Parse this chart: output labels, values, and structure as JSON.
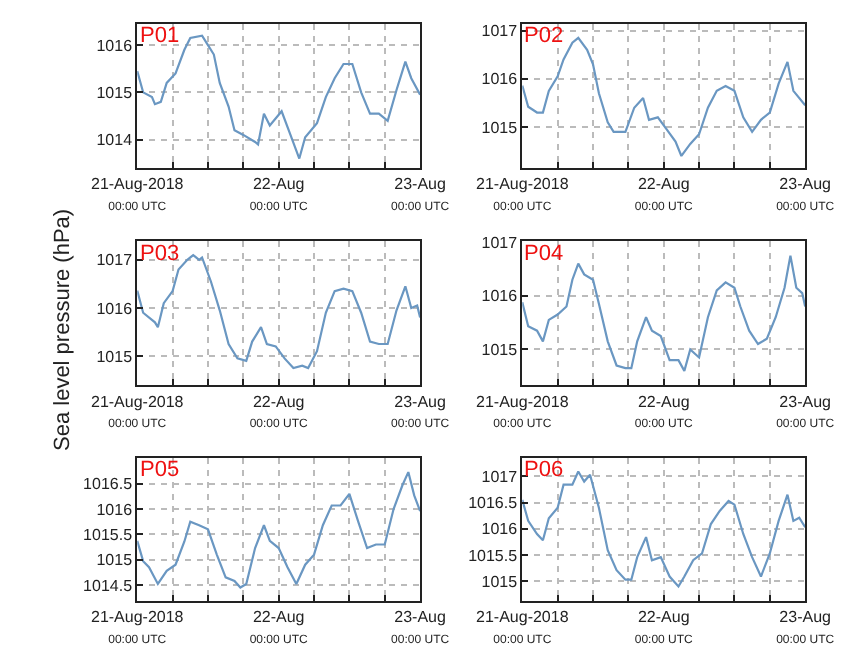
{
  "chart_data": [
    {
      "type": "line",
      "annotations": [
        "P01"
      ],
      "grid": true,
      "ylim": [
        1013.4,
        1016.45
      ],
      "yticks": [
        1014,
        1015,
        1016
      ],
      "xlim": [
        "2018-08-21T00:00",
        "2018-08-23T00:00"
      ],
      "xticks": [
        {
          "value": "2018-08-21T00:00",
          "label": "21-Aug-2018\n00:00 UTC"
        },
        {
          "value": "2018-08-21T06:00",
          "label": null
        },
        {
          "value": "2018-08-21T12:00",
          "label": null
        },
        {
          "value": "2018-08-21T18:00",
          "label": null
        },
        {
          "value": "2018-08-22T00:00",
          "label": "22-Aug\n00:00 UTC"
        },
        {
          "value": "2018-08-22T06:00",
          "label": null
        },
        {
          "value": "2018-08-22T12:00",
          "label": null
        },
        {
          "value": "2018-08-22T18:00",
          "label": null
        },
        {
          "value": "2018-08-23T00:00",
          "label": "23-Aug\n00:00 UTC"
        }
      ],
      "series": [
        {
          "color": "#6a97c2",
          "x": [
            "2018-08-21T00:00",
            "2018-08-21T01:00",
            "2018-08-21T02:30",
            "2018-08-21T03:00",
            "2018-08-21T04:00",
            "2018-08-21T05:00",
            "2018-08-21T06:30",
            "2018-08-21T08:00",
            "2018-08-21T09:00",
            "2018-08-21T11:00",
            "2018-08-21T12:00",
            "2018-08-21T13:00",
            "2018-08-21T14:00",
            "2018-08-21T15:30",
            "2018-08-21T16:30",
            "2018-08-21T18:00",
            "2018-08-21T20:00",
            "2018-08-21T20:30",
            "2018-08-21T21:30",
            "2018-08-21T22:30",
            "2018-08-22T00:30",
            "2018-08-22T02:00",
            "2018-08-22T03:30",
            "2018-08-22T04:30",
            "2018-08-22T06:30",
            "2018-08-22T08:00",
            "2018-08-22T09:30",
            "2018-08-22T11:00",
            "2018-08-22T12:30",
            "2018-08-22T14:00",
            "2018-08-22T15:30",
            "2018-08-22T17:00",
            "2018-08-22T18:30",
            "2018-08-22T20:00",
            "2018-08-22T21:30",
            "2018-08-22T22:30",
            "2018-08-23T00:00"
          ],
          "values": [
            1015.45,
            1015.0,
            1014.9,
            1014.75,
            1014.8,
            1015.2,
            1015.4,
            1015.9,
            1016.15,
            1016.2,
            1016.0,
            1015.8,
            1015.2,
            1014.7,
            1014.2,
            1014.1,
            1013.95,
            1013.9,
            1014.55,
            1014.3,
            1014.6,
            1014.1,
            1013.6,
            1014.05,
            1014.35,
            1014.9,
            1015.3,
            1015.6,
            1015.6,
            1015.0,
            1014.55,
            1014.55,
            1014.4,
            1015.05,
            1015.65,
            1015.3,
            1014.95
          ]
        }
      ]
    },
    {
      "type": "line",
      "annotations": [
        "P02"
      ],
      "grid": true,
      "ylim": [
        1014.15,
        1017.14
      ],
      "yticks": [
        1015,
        1016,
        1017
      ],
      "xlim": [
        "2018-08-21T00:00",
        "2018-08-23T00:00"
      ],
      "xticks": [
        {
          "value": "2018-08-21T00:00",
          "label": "21-Aug-2018\n00:00 UTC"
        },
        {
          "value": "2018-08-21T06:00",
          "label": null
        },
        {
          "value": "2018-08-21T12:00",
          "label": null
        },
        {
          "value": "2018-08-21T18:00",
          "label": null
        },
        {
          "value": "2018-08-22T00:00",
          "label": "22-Aug\n00:00 UTC"
        },
        {
          "value": "2018-08-22T06:00",
          "label": null
        },
        {
          "value": "2018-08-22T12:00",
          "label": null
        },
        {
          "value": "2018-08-22T18:00",
          "label": null
        },
        {
          "value": "2018-08-23T00:00",
          "label": "23-Aug\n00:00 UTC"
        }
      ],
      "series": [
        {
          "color": "#6a97c2",
          "x": [
            "2018-08-21T00:00",
            "2018-08-21T01:00",
            "2018-08-21T02:30",
            "2018-08-21T03:30",
            "2018-08-21T04:30",
            "2018-08-21T06:00",
            "2018-08-21T07:00",
            "2018-08-21T08:30",
            "2018-08-21T09:30",
            "2018-08-21T11:00",
            "2018-08-21T12:00",
            "2018-08-21T13:00",
            "2018-08-21T14:30",
            "2018-08-21T15:30",
            "2018-08-21T17:30",
            "2018-08-21T19:00",
            "2018-08-21T20:30",
            "2018-08-21T21:30",
            "2018-08-21T23:00",
            "2018-08-22T00:30",
            "2018-08-22T02:00",
            "2018-08-22T03:00",
            "2018-08-22T04:30",
            "2018-08-22T06:00",
            "2018-08-22T07:30",
            "2018-08-22T09:00",
            "2018-08-22T10:30",
            "2018-08-22T12:00",
            "2018-08-22T13:30",
            "2018-08-22T15:00",
            "2018-08-22T16:30",
            "2018-08-22T18:00",
            "2018-08-22T19:30",
            "2018-08-22T21:00",
            "2018-08-22T22:00",
            "2018-08-23T00:00"
          ],
          "values": [
            1015.86,
            1015.42,
            1015.3,
            1015.3,
            1015.75,
            1016.05,
            1016.4,
            1016.75,
            1016.85,
            1016.6,
            1016.3,
            1015.7,
            1015.1,
            1014.9,
            1014.9,
            1015.4,
            1015.6,
            1015.15,
            1015.2,
            1014.95,
            1014.7,
            1014.4,
            1014.65,
            1014.85,
            1015.4,
            1015.75,
            1015.85,
            1015.75,
            1015.2,
            1014.9,
            1015.15,
            1015.3,
            1015.9,
            1016.35,
            1015.75,
            1015.45
          ]
        }
      ]
    },
    {
      "type": "line",
      "annotations": [
        "P03"
      ],
      "ylabel": "Sea level pressure (hPa)",
      "grid": true,
      "ylim": [
        1014.39,
        1017.39
      ],
      "yticks": [
        1015,
        1016,
        1017
      ],
      "xlim": [
        "2018-08-21T00:00",
        "2018-08-23T00:00"
      ],
      "xticks": [
        {
          "value": "2018-08-21T00:00",
          "label": "21-Aug-2018\n00:00 UTC"
        },
        {
          "value": "2018-08-21T06:00",
          "label": null
        },
        {
          "value": "2018-08-21T12:00",
          "label": null
        },
        {
          "value": "2018-08-21T18:00",
          "label": null
        },
        {
          "value": "2018-08-22T00:00",
          "label": "22-Aug\n00:00 UTC"
        },
        {
          "value": "2018-08-22T06:00",
          "label": null
        },
        {
          "value": "2018-08-22T12:00",
          "label": null
        },
        {
          "value": "2018-08-22T18:00",
          "label": null
        },
        {
          "value": "2018-08-23T00:00",
          "label": "23-Aug\n00:00 UTC"
        }
      ],
      "series": [
        {
          "color": "#6a97c2",
          "x": [
            "2018-08-21T00:00",
            "2018-08-21T01:00",
            "2018-08-21T03:00",
            "2018-08-21T03:30",
            "2018-08-21T04:30",
            "2018-08-21T06:00",
            "2018-08-21T07:00",
            "2018-08-21T08:30",
            "2018-08-21T09:30",
            "2018-08-21T10:30",
            "2018-08-21T11:00",
            "2018-08-21T12:30",
            "2018-08-21T14:00",
            "2018-08-21T15:30",
            "2018-08-21T17:00",
            "2018-08-21T18:30",
            "2018-08-21T19:30",
            "2018-08-21T21:00",
            "2018-08-21T22:00",
            "2018-08-21T23:30",
            "2018-08-22T01:00",
            "2018-08-22T02:30",
            "2018-08-22T04:00",
            "2018-08-22T05:00",
            "2018-08-22T06:30",
            "2018-08-22T08:00",
            "2018-08-22T09:30",
            "2018-08-22T11:00",
            "2018-08-22T12:30",
            "2018-08-22T14:00",
            "2018-08-22T15:30",
            "2018-08-22T17:00",
            "2018-08-22T18:30",
            "2018-08-22T20:00",
            "2018-08-22T21:30",
            "2018-08-22T22:30",
            "2018-08-22T23:30",
            "2018-08-23T00:00"
          ],
          "values": [
            1016.36,
            1015.9,
            1015.7,
            1015.6,
            1016.1,
            1016.35,
            1016.8,
            1017.0,
            1017.1,
            1017.0,
            1017.05,
            1016.55,
            1015.95,
            1015.25,
            1014.95,
            1014.9,
            1015.3,
            1015.6,
            1015.25,
            1015.2,
            1014.95,
            1014.75,
            1014.8,
            1014.75,
            1015.1,
            1015.9,
            1016.35,
            1016.4,
            1016.35,
            1015.9,
            1015.3,
            1015.25,
            1015.25,
            1015.95,
            1016.45,
            1016.0,
            1016.05,
            1015.8
          ]
        }
      ]
    },
    {
      "type": "line",
      "annotations": [
        "P04"
      ],
      "grid": true,
      "ylim": [
        1014.33,
        1017.02
      ],
      "yticks": [
        1015,
        1016,
        1017
      ],
      "xlim": [
        "2018-08-21T00:00",
        "2018-08-23T00:00"
      ],
      "xticks": [
        {
          "value": "2018-08-21T00:00",
          "label": "21-Aug-2018\n00:00 UTC"
        },
        {
          "value": "2018-08-21T06:00",
          "label": null
        },
        {
          "value": "2018-08-21T12:00",
          "label": null
        },
        {
          "value": "2018-08-21T18:00",
          "label": null
        },
        {
          "value": "2018-08-22T00:00",
          "label": "22-Aug\n00:00 UTC"
        },
        {
          "value": "2018-08-22T06:00",
          "label": null
        },
        {
          "value": "2018-08-22T12:00",
          "label": null
        },
        {
          "value": "2018-08-22T18:00",
          "label": null
        },
        {
          "value": "2018-08-23T00:00",
          "label": "23-Aug\n00:00 UTC"
        }
      ],
      "series": [
        {
          "color": "#6a97c2",
          "x": [
            "2018-08-21T00:00",
            "2018-08-21T01:00",
            "2018-08-21T02:30",
            "2018-08-21T03:30",
            "2018-08-21T04:30",
            "2018-08-21T06:00",
            "2018-08-21T07:30",
            "2018-08-21T08:30",
            "2018-08-21T09:30",
            "2018-08-21T10:30",
            "2018-08-21T12:00",
            "2018-08-21T13:00",
            "2018-08-21T14:30",
            "2018-08-21T16:00",
            "2018-08-21T17:30",
            "2018-08-21T18:30",
            "2018-08-21T19:30",
            "2018-08-21T21:00",
            "2018-08-21T22:00",
            "2018-08-21T23:30",
            "2018-08-22T01:00",
            "2018-08-22T02:30",
            "2018-08-22T03:30",
            "2018-08-22T04:30",
            "2018-08-22T06:00",
            "2018-08-22T07:30",
            "2018-08-22T09:00",
            "2018-08-22T10:30",
            "2018-08-22T12:00",
            "2018-08-22T13:00",
            "2018-08-22T14:30",
            "2018-08-22T16:00",
            "2018-08-22T17:30",
            "2018-08-22T19:00",
            "2018-08-22T20:30",
            "2018-08-22T21:30",
            "2018-08-22T22:30",
            "2018-08-22T23:30",
            "2018-08-23T00:00"
          ],
          "values": [
            1015.88,
            1015.43,
            1015.35,
            1015.15,
            1015.55,
            1015.65,
            1015.8,
            1016.3,
            1016.6,
            1016.4,
            1016.3,
            1015.85,
            1015.15,
            1014.7,
            1014.65,
            1014.65,
            1015.15,
            1015.6,
            1015.35,
            1015.25,
            1014.8,
            1014.8,
            1014.6,
            1015.0,
            1014.85,
            1015.6,
            1016.1,
            1016.25,
            1016.15,
            1015.8,
            1015.35,
            1015.1,
            1015.2,
            1015.6,
            1016.15,
            1016.75,
            1016.15,
            1016.05,
            1015.8
          ]
        }
      ]
    },
    {
      "type": "line",
      "annotations": [
        "P05"
      ],
      "grid": true,
      "ylim": [
        1014.19,
        1017.0
      ],
      "yticks": [
        1014.5,
        1015,
        1015.5,
        1016,
        1016.5
      ],
      "xlim": [
        "2018-08-21T00:00",
        "2018-08-23T00:00"
      ],
      "xticks": [
        {
          "value": "2018-08-21T00:00",
          "label": "21-Aug-2018\n00:00 UTC"
        },
        {
          "value": "2018-08-21T06:00",
          "label": null
        },
        {
          "value": "2018-08-21T12:00",
          "label": null
        },
        {
          "value": "2018-08-21T18:00",
          "label": null
        },
        {
          "value": "2018-08-22T00:00",
          "label": "22-Aug\n00:00 UTC"
        },
        {
          "value": "2018-08-22T06:00",
          "label": null
        },
        {
          "value": "2018-08-22T12:00",
          "label": null
        },
        {
          "value": "2018-08-22T18:00",
          "label": null
        },
        {
          "value": "2018-08-23T00:00",
          "label": "23-Aug\n00:00 UTC"
        }
      ],
      "series": [
        {
          "color": "#6a97c2",
          "x": [
            "2018-08-21T00:00",
            "2018-08-21T01:00",
            "2018-08-21T02:00",
            "2018-08-21T03:30",
            "2018-08-21T05:00",
            "2018-08-21T06:30",
            "2018-08-21T08:00",
            "2018-08-21T09:00",
            "2018-08-21T10:30",
            "2018-08-21T12:00",
            "2018-08-21T13:30",
            "2018-08-21T15:00",
            "2018-08-21T16:30",
            "2018-08-21T17:30",
            "2018-08-21T18:30",
            "2018-08-21T20:00",
            "2018-08-21T21:30",
            "2018-08-21T22:30",
            "2018-08-22T00:00",
            "2018-08-22T01:30",
            "2018-08-22T03:00",
            "2018-08-22T04:30",
            "2018-08-22T06:00",
            "2018-08-22T07:30",
            "2018-08-22T09:00",
            "2018-08-22T10:30",
            "2018-08-22T12:00",
            "2018-08-22T13:30",
            "2018-08-22T15:00",
            "2018-08-22T16:30",
            "2018-08-22T18:00",
            "2018-08-22T19:30",
            "2018-08-22T21:00",
            "2018-08-22T22:00",
            "2018-08-22T23:00",
            "2018-08-23T00:00"
          ],
          "values": [
            1015.37,
            1014.97,
            1014.85,
            1014.52,
            1014.78,
            1014.9,
            1015.36,
            1015.75,
            1015.68,
            1015.6,
            1015.1,
            1014.65,
            1014.58,
            1014.45,
            1014.52,
            1015.23,
            1015.68,
            1015.37,
            1015.23,
            1014.85,
            1014.52,
            1014.9,
            1015.1,
            1015.68,
            1016.07,
            1016.07,
            1016.3,
            1015.75,
            1015.23,
            1015.3,
            1015.3,
            1016.0,
            1016.47,
            1016.73,
            1016.27,
            1015.96
          ]
        }
      ]
    },
    {
      "type": "line",
      "annotations": [
        "P06"
      ],
      "grid": true,
      "ylim": [
        1014.63,
        1017.34
      ],
      "yticks": [
        1015,
        1015.5,
        1016,
        1016.5,
        1017
      ],
      "xlim": [
        "2018-08-21T00:00",
        "2018-08-23T00:00"
      ],
      "xticks": [
        {
          "value": "2018-08-21T00:00",
          "label": "21-Aug-2018\n00:00 UTC"
        },
        {
          "value": "2018-08-21T06:00",
          "label": null
        },
        {
          "value": "2018-08-21T12:00",
          "label": null
        },
        {
          "value": "2018-08-21T18:00",
          "label": null
        },
        {
          "value": "2018-08-22T00:00",
          "label": "22-Aug\n00:00 UTC"
        },
        {
          "value": "2018-08-22T06:00",
          "label": null
        },
        {
          "value": "2018-08-22T12:00",
          "label": null
        },
        {
          "value": "2018-08-22T18:00",
          "label": null
        },
        {
          "value": "2018-08-23T00:00",
          "label": "23-Aug\n00:00 UTC"
        }
      ],
      "series": [
        {
          "color": "#6a97c2",
          "x": [
            "2018-08-21T00:00",
            "2018-08-21T01:00",
            "2018-08-21T02:30",
            "2018-08-21T03:30",
            "2018-08-21T04:30",
            "2018-08-21T06:00",
            "2018-08-21T07:00",
            "2018-08-21T08:30",
            "2018-08-21T09:30",
            "2018-08-21T10:30",
            "2018-08-21T11:30",
            "2018-08-21T13:00",
            "2018-08-21T14:30",
            "2018-08-21T16:00",
            "2018-08-21T17:30",
            "2018-08-21T18:30",
            "2018-08-21T19:30",
            "2018-08-21T21:00",
            "2018-08-21T22:00",
            "2018-08-21T23:30",
            "2018-08-22T01:00",
            "2018-08-22T02:30",
            "2018-08-22T03:30",
            "2018-08-22T05:00",
            "2018-08-22T06:30",
            "2018-08-22T08:00",
            "2018-08-22T09:30",
            "2018-08-22T11:00",
            "2018-08-22T12:00",
            "2018-08-22T13:30",
            "2018-08-22T15:00",
            "2018-08-22T16:30",
            "2018-08-22T18:00",
            "2018-08-22T19:30",
            "2018-08-22T21:00",
            "2018-08-22T22:00",
            "2018-08-22T23:00",
            "2018-08-23T00:00"
          ],
          "values": [
            1016.55,
            1016.15,
            1015.9,
            1015.78,
            1016.2,
            1016.4,
            1016.84,
            1016.84,
            1017.09,
            1016.9,
            1017.03,
            1016.4,
            1015.59,
            1015.21,
            1015.03,
            1015.03,
            1015.46,
            1015.84,
            1015.4,
            1015.46,
            1015.09,
            1014.9,
            1015.09,
            1015.4,
            1015.53,
            1016.09,
            1016.34,
            1016.53,
            1016.46,
            1015.9,
            1015.46,
            1015.09,
            1015.53,
            1016.15,
            1016.65,
            1016.15,
            1016.21,
            1016.03
          ]
        }
      ]
    }
  ]
}
